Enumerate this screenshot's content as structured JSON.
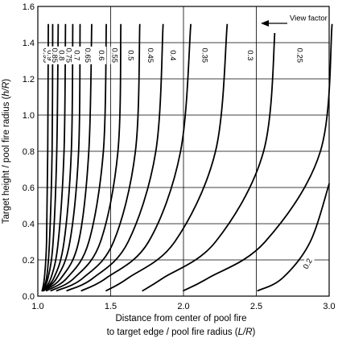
{
  "chart_data": {
    "type": "line",
    "title": "",
    "xlabel": {
      "line1": "Distance from center of pool fire",
      "line2": "to target edge / pool fire radius (",
      "italic": "L/R",
      "end": ")"
    },
    "ylabel": {
      "prefix": "Target height / pool fire radius (",
      "italic": "h/R",
      "end": ")"
    },
    "xlim": [
      1.0,
      3.0
    ],
    "ylim": [
      0.0,
      1.6
    ],
    "x_ticks": [
      "1.0",
      "1.5",
      "2.0",
      "2.5",
      "3.0"
    ],
    "y_ticks": [
      "0.0",
      "0.2",
      "0.4",
      "0.6",
      "0.8",
      "1.0",
      "1.2",
      "1.4",
      "1.6"
    ],
    "grid": {
      "horizontal": true,
      "vertical": true
    },
    "annotation": "View factor",
    "series": [
      {
        "name": "0.95",
        "x": [
          1.03,
          1.045,
          1.06,
          1.068,
          1.072
        ],
        "y": [
          0.03,
          0.1,
          0.3,
          0.8,
          1.5
        ]
      },
      {
        "name": "0.9",
        "x": [
          1.03,
          1.06,
          1.08,
          1.098,
          1.102
        ],
        "y": [
          0.03,
          0.1,
          0.3,
          0.8,
          1.5
        ]
      },
      {
        "name": "0.85",
        "x": [
          1.03,
          1.07,
          1.105,
          1.13,
          1.14
        ],
        "y": [
          0.03,
          0.1,
          0.3,
          0.8,
          1.5
        ]
      },
      {
        "name": "0.8",
        "x": [
          1.03,
          1.09,
          1.14,
          1.18,
          1.19
        ],
        "y": [
          0.03,
          0.1,
          0.3,
          0.8,
          1.5
        ]
      },
      {
        "name": "0.75",
        "x": [
          1.03,
          1.11,
          1.18,
          1.23,
          1.24
        ],
        "y": [
          0.03,
          0.1,
          0.3,
          0.8,
          1.5
        ]
      },
      {
        "name": "0.7",
        "x": [
          1.03,
          1.13,
          1.22,
          1.28,
          1.29
        ],
        "y": [
          0.03,
          0.1,
          0.3,
          0.8,
          1.5
        ]
      },
      {
        "name": "0.65",
        "x": [
          1.04,
          1.16,
          1.28,
          1.35,
          1.37
        ],
        "y": [
          0.03,
          0.1,
          0.3,
          0.8,
          1.5
        ]
      },
      {
        "name": "0.6",
        "x": [
          1.06,
          1.2,
          1.35,
          1.45,
          1.47
        ],
        "y": [
          0.03,
          0.1,
          0.3,
          0.8,
          1.5
        ]
      },
      {
        "name": "0.55",
        "x": [
          1.09,
          1.25,
          1.43,
          1.55,
          1.57
        ],
        "y": [
          0.03,
          0.1,
          0.3,
          0.8,
          1.5
        ]
      },
      {
        "name": "0.5",
        "x": [
          1.13,
          1.31,
          1.52,
          1.67,
          1.7
        ],
        "y": [
          0.03,
          0.1,
          0.3,
          0.8,
          1.5
        ]
      },
      {
        "name": "0.45",
        "x": [
          1.2,
          1.38,
          1.62,
          1.81,
          1.86
        ],
        "y": [
          0.03,
          0.1,
          0.3,
          0.8,
          1.5
        ]
      },
      {
        "name": "0.4",
        "x": [
          1.3,
          1.47,
          1.76,
          1.98,
          2.05
        ],
        "y": [
          0.03,
          0.1,
          0.3,
          0.8,
          1.5
        ]
      },
      {
        "name": "0.35",
        "x": [
          1.47,
          1.62,
          1.94,
          2.22,
          2.3
        ],
        "y": [
          0.03,
          0.1,
          0.3,
          0.8,
          1.5
        ]
      },
      {
        "name": "0.3",
        "x": [
          1.72,
          1.86,
          2.22,
          2.55,
          2.63
        ],
        "y": [
          0.03,
          0.1,
          0.3,
          0.8,
          1.5
        ]
      },
      {
        "name": "0.25",
        "x": [
          2.0,
          2.17,
          2.56,
          2.94,
          3.02
        ],
        "y": [
          0.03,
          0.1,
          0.3,
          0.8,
          1.5
        ]
      },
      {
        "name": "0.2",
        "x": [
          2.51,
          2.68,
          2.87,
          3.0
        ],
        "y": [
          0.03,
          0.1,
          0.3,
          0.62
        ]
      }
    ],
    "label_positions": [
      {
        "series": "0.95",
        "x": 1.058,
        "y": 1.33
      },
      {
        "series": "0.9",
        "x": 1.085,
        "y": 1.33
      },
      {
        "series": "0.85",
        "x": 1.12,
        "y": 1.33
      },
      {
        "series": "0.8",
        "x": 1.165,
        "y": 1.33
      },
      {
        "series": "0.75",
        "x": 1.215,
        "y": 1.33
      },
      {
        "series": "0.7",
        "x": 1.27,
        "y": 1.33
      },
      {
        "series": "0.65",
        "x": 1.345,
        "y": 1.33
      },
      {
        "series": "0.6",
        "x": 1.44,
        "y": 1.33
      },
      {
        "series": "0.55",
        "x": 1.53,
        "y": 1.33
      },
      {
        "series": "0.5",
        "x": 1.64,
        "y": 1.33
      },
      {
        "series": "0.45",
        "x": 1.775,
        "y": 1.33
      },
      {
        "series": "0.4",
        "x": 1.93,
        "y": 1.33
      },
      {
        "series": "0.35",
        "x": 2.15,
        "y": 1.33
      },
      {
        "series": "0.3",
        "x": 2.46,
        "y": 1.33
      },
      {
        "series": "0.25",
        "x": 2.8,
        "y": 1.33
      },
      {
        "series": "0.2",
        "x": 2.85,
        "y": 0.18
      }
    ]
  }
}
